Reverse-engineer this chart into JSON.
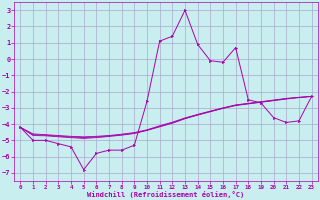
{
  "xlabel": "Windchill (Refroidissement éolien,°C)",
  "background_color": "#c8eef0",
  "grid_color": "#aaaacc",
  "line_color": "#aa00aa",
  "xlim": [
    -0.5,
    23.5
  ],
  "ylim": [
    -7.5,
    3.5
  ],
  "xticks": [
    0,
    1,
    2,
    3,
    4,
    5,
    6,
    7,
    8,
    9,
    10,
    11,
    12,
    13,
    14,
    15,
    16,
    17,
    18,
    19,
    20,
    21,
    22,
    23
  ],
  "yticks": [
    -7,
    -6,
    -5,
    -4,
    -3,
    -2,
    -1,
    0,
    1,
    2,
    3
  ],
  "main_line_x": [
    0,
    1,
    2,
    3,
    4,
    5,
    6,
    7,
    8,
    9,
    10,
    11,
    12,
    13,
    14,
    15,
    16,
    17,
    18,
    19,
    20,
    21,
    22,
    23
  ],
  "main_line_y": [
    -4.2,
    -5.0,
    -5.0,
    -5.2,
    -5.4,
    -6.8,
    -5.8,
    -5.6,
    -5.6,
    -5.3,
    -2.6,
    1.1,
    1.4,
    3.0,
    0.9,
    -0.1,
    -0.2,
    0.7,
    -2.5,
    -2.7,
    -3.6,
    -3.9,
    -3.8,
    -2.3
  ],
  "smooth_lines": [
    [
      -4.2,
      -4.6,
      -4.65,
      -4.7,
      -4.75,
      -4.78,
      -4.75,
      -4.7,
      -4.62,
      -4.52,
      -4.35,
      -4.1,
      -3.88,
      -3.62,
      -3.4,
      -3.2,
      -3.0,
      -2.82,
      -2.72,
      -2.62,
      -2.52,
      -2.42,
      -2.35,
      -2.3
    ],
    [
      -4.2,
      -4.65,
      -4.68,
      -4.74,
      -4.79,
      -4.83,
      -4.79,
      -4.73,
      -4.65,
      -4.55,
      -4.37,
      -4.14,
      -3.92,
      -3.65,
      -3.43,
      -3.22,
      -3.02,
      -2.84,
      -2.74,
      -2.64,
      -2.54,
      -2.44,
      -2.36,
      -2.3
    ],
    [
      -4.2,
      -4.7,
      -4.72,
      -4.78,
      -4.83,
      -4.88,
      -4.83,
      -4.76,
      -4.68,
      -4.58,
      -4.39,
      -4.17,
      -3.95,
      -3.67,
      -3.45,
      -3.24,
      -3.04,
      -2.86,
      -2.76,
      -2.66,
      -2.56,
      -2.46,
      -2.37,
      -2.3
    ]
  ]
}
